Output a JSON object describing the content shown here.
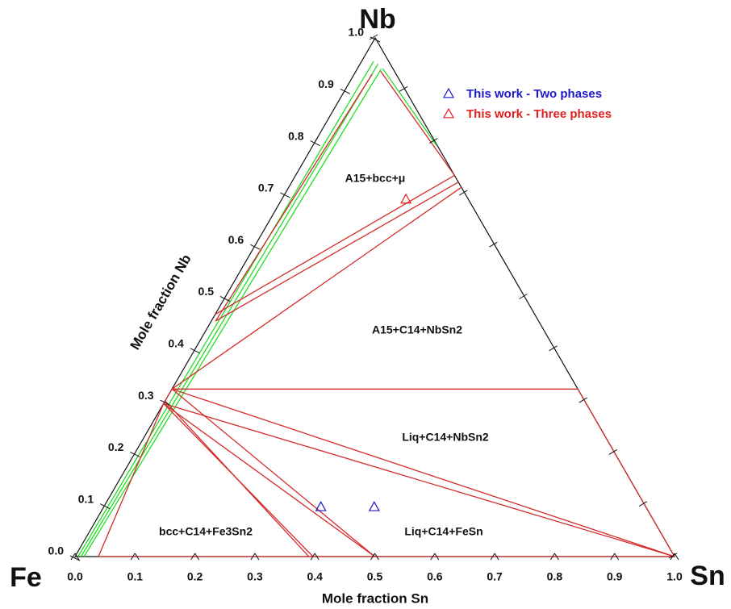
{
  "chart_data": {
    "type": "ternary",
    "vertex_labels": {
      "top": "Nb",
      "left": "Fe",
      "right": "Sn"
    },
    "xlabel": "Mole fraction Sn",
    "ylabel": "Mole fraction Nb",
    "xlim": [
      0,
      1
    ],
    "ylim": [
      0,
      1
    ],
    "xticks": [
      {
        "value": 0,
        "label": "0.0"
      },
      0.1,
      0.2,
      0.3,
      0.4,
      0.5,
      0.6,
      0.7,
      0.8,
      0.9,
      {
        "value": 1,
        "label": "1.0"
      }
    ],
    "yticks": [
      {
        "value": 0,
        "label": "0.0"
      },
      0.1,
      0.2,
      0.3,
      0.4,
      0.5,
      0.6,
      0.7,
      0.8,
      0.9,
      {
        "value": 1,
        "label": "1.0"
      }
    ],
    "region_labels": [
      "A15+bcc+μ",
      "A15+C14+NbSn2",
      "Liq+C14+NbSn2",
      "bcc+C14+Fe3Sn2",
      "Liq+C14+FeSn"
    ],
    "series": [
      {
        "name": "This work - Two phases",
        "color": "#1a1acc",
        "marker": "triangle",
        "x": [
          0.362,
          0.451
        ],
        "y": [
          0.096,
          0.096
        ]
      },
      {
        "name": "This work - Three phases",
        "color": "#e02020",
        "marker": "triangle",
        "x": [
          0.207
        ],
        "y": [
          0.689
        ]
      }
    ],
    "tie_lines": [
      {
        "color": "#22dd22",
        "x": [
          0.005,
          0.02
        ],
        "y": [
          0,
          0.955
        ]
      },
      {
        "color": "#22dd22",
        "x": [
          0.01,
          0.03
        ],
        "y": [
          0,
          0.95
        ]
      },
      {
        "color": "#22dd22",
        "x": [
          0.015,
          0.04
        ],
        "y": [
          0,
          0.94
        ]
      },
      {
        "color": "#22dd22",
        "x": [
          0.042,
          0.206
        ],
        "y": [
          0.941,
          0.793
        ]
      },
      {
        "color": "#d42a2a",
        "x": [
          0.041,
          0.265
        ],
        "y": [
          0.936,
          0.735
        ]
      },
      {
        "color": "#d42a2a",
        "x": [
          0.03,
          0.007
        ],
        "y": [
          0.93,
          0.454
        ]
      },
      {
        "color": "#d42a2a",
        "x": [
          0.265,
          0.0
        ],
        "y": [
          0.735,
          0.467
        ]
      },
      {
        "color": "#d42a2a",
        "x": [
          0.278,
          0.007
        ],
        "y": [
          0.722,
          0.454
        ]
      },
      {
        "color": "#d42a2a",
        "x": [
          0.288,
          0.0
        ],
        "y": [
          0.712,
          0.323
        ]
      },
      {
        "color": "#d42a2a",
        "x": [
          0.0,
          0.677
        ],
        "y": [
          0.323,
          0.323
        ]
      },
      {
        "color": "#d42a2a",
        "x": [
          0.677,
          1
        ],
        "y": [
          0.323,
          0
        ]
      },
      {
        "color": "#d42a2a",
        "x": [
          0.0,
          1
        ],
        "y": [
          0.323,
          0
        ]
      },
      {
        "color": "#d42a2a",
        "x": [
          0.0,
          1
        ],
        "y": [
          0.295,
          0
        ]
      },
      {
        "color": "#d42a2a",
        "x": [
          0.0,
          0.0
        ],
        "y": [
          0.323,
          0.295
        ]
      },
      {
        "color": "#d42a2a",
        "x": [
          0.0,
          0.5
        ],
        "y": [
          0.323,
          0
        ]
      },
      {
        "color": "#d42a2a",
        "x": [
          0.0,
          0.5
        ],
        "y": [
          0.295,
          0
        ]
      },
      {
        "color": "#d42a2a",
        "x": [
          0.0,
          0.397
        ],
        "y": [
          0.295,
          0
        ]
      },
      {
        "color": "#d42a2a",
        "x": [
          0.0,
          0.39
        ],
        "y": [
          0.3,
          0
        ]
      },
      {
        "color": "#d42a2a",
        "x": [
          0.0,
          0.039
        ],
        "y": [
          0.295,
          0
        ]
      },
      {
        "color": "#d42a2a",
        "x": [
          0.039,
          1
        ],
        "y": [
          0,
          0
        ]
      }
    ]
  }
}
